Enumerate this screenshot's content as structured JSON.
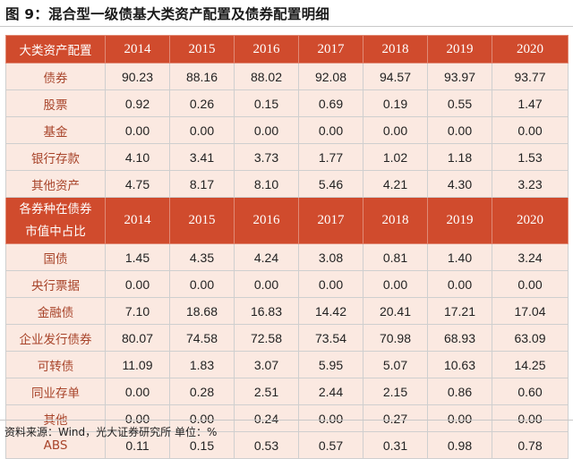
{
  "title": "图 9：混合型一级债基大类资产配置及债券配置明细",
  "section1": {
    "header_label": "大类资产配置",
    "years": [
      "2014",
      "2015",
      "2016",
      "2017",
      "2018",
      "2019",
      "2020"
    ],
    "rows": [
      {
        "label": "债券",
        "values": [
          "90.23",
          "88.16",
          "88.02",
          "92.08",
          "94.57",
          "93.97",
          "93.77"
        ]
      },
      {
        "label": "股票",
        "values": [
          "0.92",
          "0.26",
          "0.15",
          "0.69",
          "0.19",
          "0.55",
          "1.47"
        ]
      },
      {
        "label": "基金",
        "values": [
          "0.00",
          "0.00",
          "0.00",
          "0.00",
          "0.00",
          "0.00",
          "0.00"
        ]
      },
      {
        "label": "银行存款",
        "values": [
          "4.10",
          "3.41",
          "3.73",
          "1.77",
          "1.02",
          "1.18",
          "1.53"
        ]
      },
      {
        "label": "其他资产",
        "values": [
          "4.75",
          "8.17",
          "8.10",
          "5.46",
          "4.21",
          "4.30",
          "3.23"
        ]
      }
    ]
  },
  "section2": {
    "header_label_line1": "各券种在债券",
    "header_label_line2": "市值中占比",
    "years": [
      "2014",
      "2015",
      "2016",
      "2017",
      "2018",
      "2019",
      "2020"
    ],
    "rows": [
      {
        "label": "国债",
        "values": [
          "1.45",
          "4.35",
          "4.24",
          "3.08",
          "0.81",
          "1.40",
          "3.24"
        ]
      },
      {
        "label": "央行票据",
        "values": [
          "0.00",
          "0.00",
          "0.00",
          "0.00",
          "0.00",
          "0.00",
          "0.00"
        ]
      },
      {
        "label": "金融债",
        "values": [
          "7.10",
          "18.68",
          "16.83",
          "14.42",
          "20.41",
          "17.21",
          "17.04"
        ]
      },
      {
        "label": "企业发行债券",
        "values": [
          "80.07",
          "74.58",
          "72.58",
          "73.54",
          "70.98",
          "68.93",
          "63.09"
        ]
      },
      {
        "label": "可转债",
        "values": [
          "11.09",
          "1.83",
          "3.07",
          "5.95",
          "5.07",
          "10.63",
          "14.25"
        ]
      },
      {
        "label": "同业存单",
        "values": [
          "0.00",
          "0.28",
          "2.51",
          "2.44",
          "2.15",
          "0.86",
          "0.60"
        ]
      },
      {
        "label": "其他",
        "values": [
          "0.00",
          "0.00",
          "0.24",
          "0.00",
          "0.27",
          "0.00",
          "0.00"
        ]
      },
      {
        "label": "ABS",
        "values": [
          "0.11",
          "0.15",
          "0.53",
          "0.57",
          "0.31",
          "0.98",
          "0.78"
        ]
      }
    ]
  },
  "footnote": "资料来源：Wind，光大证券研究所  单位：%",
  "colors": {
    "header_bg": "#d04b2d",
    "row_bg": "#fbe9e1",
    "label_text": "#a8442a"
  }
}
